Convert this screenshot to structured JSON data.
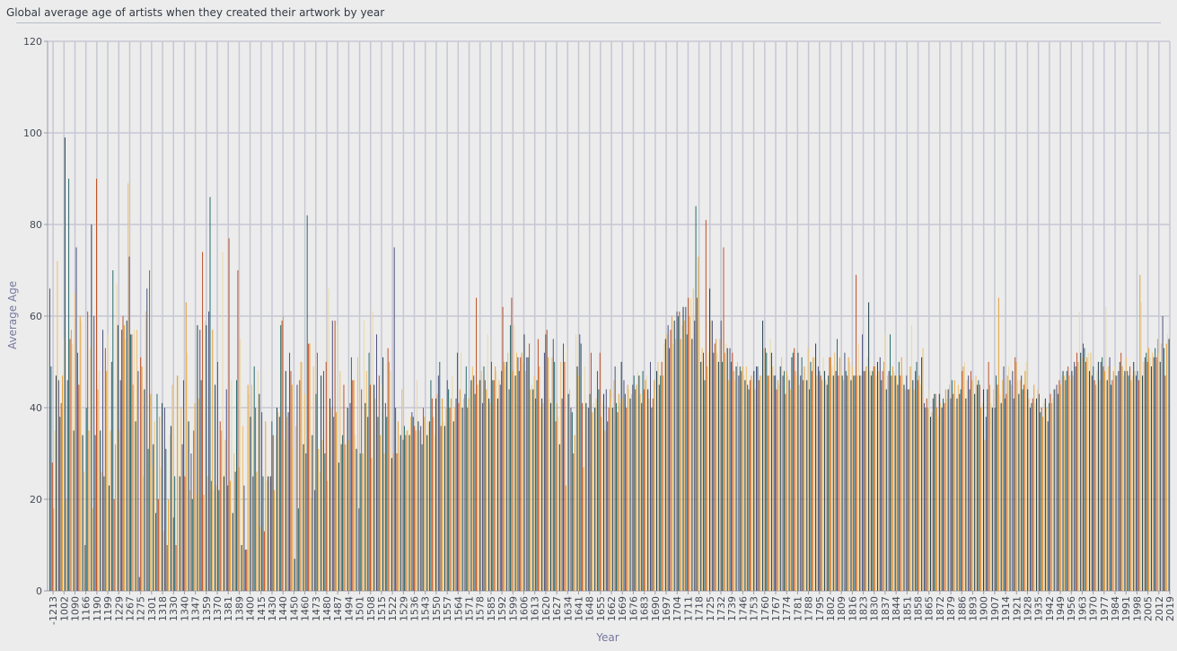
{
  "chart_data": {
    "type": "bar",
    "title": "Global average age of artists when they created their artwork by year",
    "xlabel": "Year",
    "ylabel": "Average Age",
    "ylim": [
      0,
      120
    ],
    "yticks": [
      0,
      20,
      40,
      60,
      80,
      100,
      120
    ],
    "grid": true,
    "legend": "none",
    "series_colors": [
      "#4e527e",
      "#2a6d6f",
      "#c1532b",
      "#e5a136",
      "#e9d8a6",
      "#21404e",
      "#f0c070"
    ],
    "x_tick_labels": [
      "-1213",
      "1002",
      "1090",
      "1166",
      "1190",
      "1199",
      "1229",
      "1267",
      "1275",
      "1301",
      "1318",
      "1330",
      "1340",
      "1347",
      "1359",
      "1370",
      "1381",
      "1389",
      "1400",
      "1415",
      "1430",
      "1440",
      "1450",
      "1460",
      "1473",
      "1480",
      "1487",
      "1494",
      "1501",
      "1508",
      "1515",
      "1522",
      "1529",
      "1536",
      "1543",
      "1550",
      "1557",
      "1564",
      "1571",
      "1578",
      "1585",
      "1592",
      "1599",
      "1606",
      "1613",
      "1620",
      "1627",
      "1634",
      "1641",
      "1648",
      "1655",
      "1662",
      "1669",
      "1676",
      "1683",
      "1690",
      "1697",
      "1704",
      "1711",
      "1718",
      "1725",
      "1732",
      "1739",
      "1746",
      "1753",
      "1760",
      "1767",
      "1774",
      "1781",
      "1788",
      "1795",
      "1802",
      "1809",
      "1816",
      "1823",
      "1830",
      "1837",
      "1844",
      "1851",
      "1858",
      "1865",
      "1872",
      "1879",
      "1886",
      "1893",
      "1900",
      "1907",
      "1914",
      "1921",
      "1928",
      "1935",
      "1942",
      "1949",
      "1956",
      "1963",
      "1970",
      "1977",
      "1984",
      "1991",
      "1998",
      "2005",
      "2012",
      "2019"
    ],
    "values": [
      66,
      49,
      28,
      18,
      35,
      47,
      72,
      46,
      38,
      41,
      47,
      55,
      99,
      20,
      46,
      90,
      55,
      57,
      54,
      35,
      65,
      75,
      52,
      45,
      60,
      59,
      34,
      26,
      10,
      40,
      61,
      35,
      53,
      80,
      18,
      60,
      34,
      90,
      44,
      48,
      35,
      26,
      57,
      25,
      53,
      48,
      56,
      23,
      35,
      50,
      70,
      20,
      32,
      67,
      58,
      35,
      46,
      57,
      60,
      58,
      55,
      59,
      89,
      73,
      56,
      56,
      45,
      57,
      37,
      57,
      48,
      3,
      51,
      49,
      25,
      44,
      61,
      66,
      31,
      70,
      43,
      27,
      32,
      37,
      17,
      43,
      20,
      38,
      27,
      41,
      13,
      40,
      31,
      10,
      20,
      34,
      36,
      45,
      16,
      25,
      10,
      47,
      47,
      25,
      40,
      32,
      46,
      25,
      63,
      52,
      37,
      22,
      30,
      20,
      35,
      41,
      21,
      58,
      42,
      57,
      46,
      74,
      21,
      59,
      58,
      25,
      61,
      86,
      24,
      57,
      22,
      45,
      23,
      50,
      22,
      37,
      35,
      74,
      25,
      33,
      44,
      23,
      77,
      24,
      46,
      17,
      30,
      26,
      46,
      70,
      27,
      55,
      10,
      36,
      23,
      9,
      9,
      45,
      43,
      38,
      45,
      25,
      49,
      40,
      26,
      48,
      43,
      14,
      39,
      25,
      13,
      37,
      24,
      25,
      25,
      25,
      37,
      34,
      22,
      34,
      40,
      39,
      38,
      58,
      59,
      60,
      33,
      48,
      38,
      39,
      52,
      48,
      45,
      31,
      7,
      36,
      45,
      18,
      46,
      50,
      50,
      32,
      43,
      30,
      82,
      54,
      54,
      20,
      34,
      49,
      22,
      43,
      52,
      31,
      26,
      47,
      33,
      48,
      30,
      50,
      24,
      66,
      42,
      40,
      59,
      38,
      59,
      39,
      58,
      28,
      48,
      32,
      34,
      45,
      32,
      32,
      40,
      33,
      41,
      51,
      46,
      46,
      34,
      31,
      51,
      18,
      30,
      44,
      30,
      59,
      41,
      48,
      38,
      52,
      45,
      29,
      61,
      45,
      42,
      56,
      38,
      47,
      34,
      45,
      51,
      30,
      41,
      38,
      53,
      50,
      48,
      29,
      30,
      75,
      40,
      30,
      37,
      30,
      34,
      44,
      33,
      36,
      34,
      35,
      35,
      34,
      38,
      39,
      38,
      36,
      35,
      46,
      37,
      35,
      36,
      32,
      40,
      38,
      34,
      34,
      37,
      37,
      46,
      42,
      38,
      34,
      42,
      43,
      47,
      50,
      36,
      42,
      37,
      36,
      40,
      46,
      44,
      40,
      42,
      47,
      37,
      40,
      42,
      52,
      41,
      44,
      52,
      40,
      42,
      43,
      49,
      40,
      42,
      44,
      46,
      49,
      47,
      43,
      64,
      45,
      46,
      46,
      48,
      41,
      49,
      46,
      44,
      56,
      42,
      41,
      50,
      46,
      46,
      49,
      48,
      42,
      46,
      45,
      48,
      62,
      50,
      49,
      50,
      52,
      44,
      58,
      64,
      48,
      58,
      47,
      52,
      51,
      48,
      51,
      52,
      50,
      56,
      48,
      51,
      51,
      54,
      44,
      45,
      44,
      47,
      42,
      46,
      55,
      49,
      40,
      42,
      41,
      52,
      56,
      57,
      51,
      42,
      41,
      51,
      55,
      50,
      37,
      41,
      38,
      32,
      50,
      42,
      54,
      50,
      23,
      53,
      43,
      44,
      40,
      39,
      30,
      34,
      56,
      49,
      47,
      56,
      54,
      41,
      27,
      49,
      41,
      40,
      40,
      43,
      52,
      39,
      41,
      40,
      42,
      48,
      44,
      52,
      38,
      41,
      43,
      35,
      44,
      37,
      40,
      44,
      42,
      40,
      46,
      49,
      41,
      39,
      43,
      41,
      50,
      42,
      46,
      43,
      40,
      45,
      44,
      42,
      43,
      45,
      47,
      44,
      45,
      48,
      47,
      43,
      41,
      48,
      44,
      46,
      47,
      44,
      42,
      50,
      40,
      42,
      46,
      44,
      48,
      50,
      45,
      47,
      50,
      47,
      54,
      55,
      56,
      58,
      53,
      57,
      60,
      54,
      59,
      55,
      61,
      60,
      61,
      55,
      58,
      62,
      59,
      62,
      56,
      64,
      60,
      64,
      55,
      66,
      59,
      84,
      64,
      73,
      58,
      50,
      53,
      52,
      46,
      81,
      49,
      52,
      66,
      59,
      59,
      52,
      54,
      55,
      52,
      50,
      55,
      59,
      50,
      75,
      52,
      54,
      53,
      46,
      53,
      50,
      52,
      48,
      46,
      49,
      50,
      47,
      49,
      48,
      49,
      47,
      46,
      49,
      45,
      44,
      46,
      47,
      46,
      48,
      44,
      49,
      49,
      46,
      47,
      47,
      59,
      53,
      53,
      52,
      47,
      47,
      55,
      52,
      49,
      47,
      47,
      44,
      46,
      45,
      49,
      51,
      47,
      48,
      43,
      48,
      47,
      46,
      44,
      51,
      52,
      53,
      48,
      47,
      52,
      45,
      47,
      51,
      46,
      49,
      46,
      46,
      53,
      44,
      50,
      48,
      51,
      51,
      54,
      47,
      49,
      48,
      47,
      46,
      51,
      48,
      46,
      45,
      47,
      51,
      51,
      49,
      47,
      52,
      48,
      55,
      47,
      51,
      48,
      47,
      46,
      52,
      48,
      47,
      51,
      50,
      46,
      49,
      47,
      47,
      69,
      47,
      54,
      47,
      47,
      56,
      48,
      48,
      49,
      51,
      63,
      48,
      47,
      48,
      49,
      49,
      47,
      50,
      48,
      51,
      46,
      48,
      50,
      56,
      44,
      47,
      48,
      56,
      47,
      49,
      48,
      47,
      47,
      45,
      50,
      47,
      51,
      47,
      45,
      44,
      47,
      44,
      44,
      49,
      58,
      46,
      44,
      48,
      50,
      46,
      47,
      45,
      51,
      53,
      41,
      40,
      42,
      40,
      44,
      38,
      39,
      42,
      43,
      43,
      40,
      38,
      43,
      41,
      40,
      42,
      41,
      44,
      42,
      44,
      45,
      42,
      46,
      43,
      46,
      40,
      42,
      45,
      43,
      44,
      48,
      49,
      50,
      42,
      46,
      47,
      44,
      48,
      46,
      47,
      43,
      47,
      45,
      46,
      45,
      40,
      41,
      44,
      33,
      38,
      44,
      50,
      45,
      41,
      40,
      44,
      40,
      47,
      45,
      64,
      43,
      41,
      46,
      49,
      42,
      43,
      47,
      49,
      46,
      45,
      48,
      42,
      51,
      50,
      46,
      43,
      46,
      47,
      44,
      45,
      48,
      50,
      44,
      42,
      40,
      41,
      42,
      45,
      41,
      42,
      44,
      43,
      39,
      40,
      38,
      41,
      42,
      40,
      37,
      41,
      43,
      41,
      42,
      44,
      44,
      45,
      43,
      46,
      45,
      47,
      48,
      47,
      46,
      48,
      49,
      47,
      46,
      48,
      47,
      50,
      49,
      52,
      50,
      61,
      52,
      51,
      54,
      53,
      50,
      51,
      52,
      48,
      52,
      47,
      49,
      46,
      45,
      48,
      50,
      46,
      50,
      51,
      49,
      48,
      62,
      46,
      49,
      51,
      45,
      46,
      48,
      49,
      47,
      47,
      48,
      50,
      52,
      49,
      47,
      48,
      51,
      48,
      47,
      49,
      46,
      47,
      50,
      48,
      47,
      48,
      46,
      69,
      63,
      47,
      50,
      51,
      52,
      50,
      53,
      51,
      49,
      52,
      51,
      53,
      51,
      55,
      52,
      50,
      54,
      60,
      53,
      47,
      54,
      56,
      55
    ]
  }
}
